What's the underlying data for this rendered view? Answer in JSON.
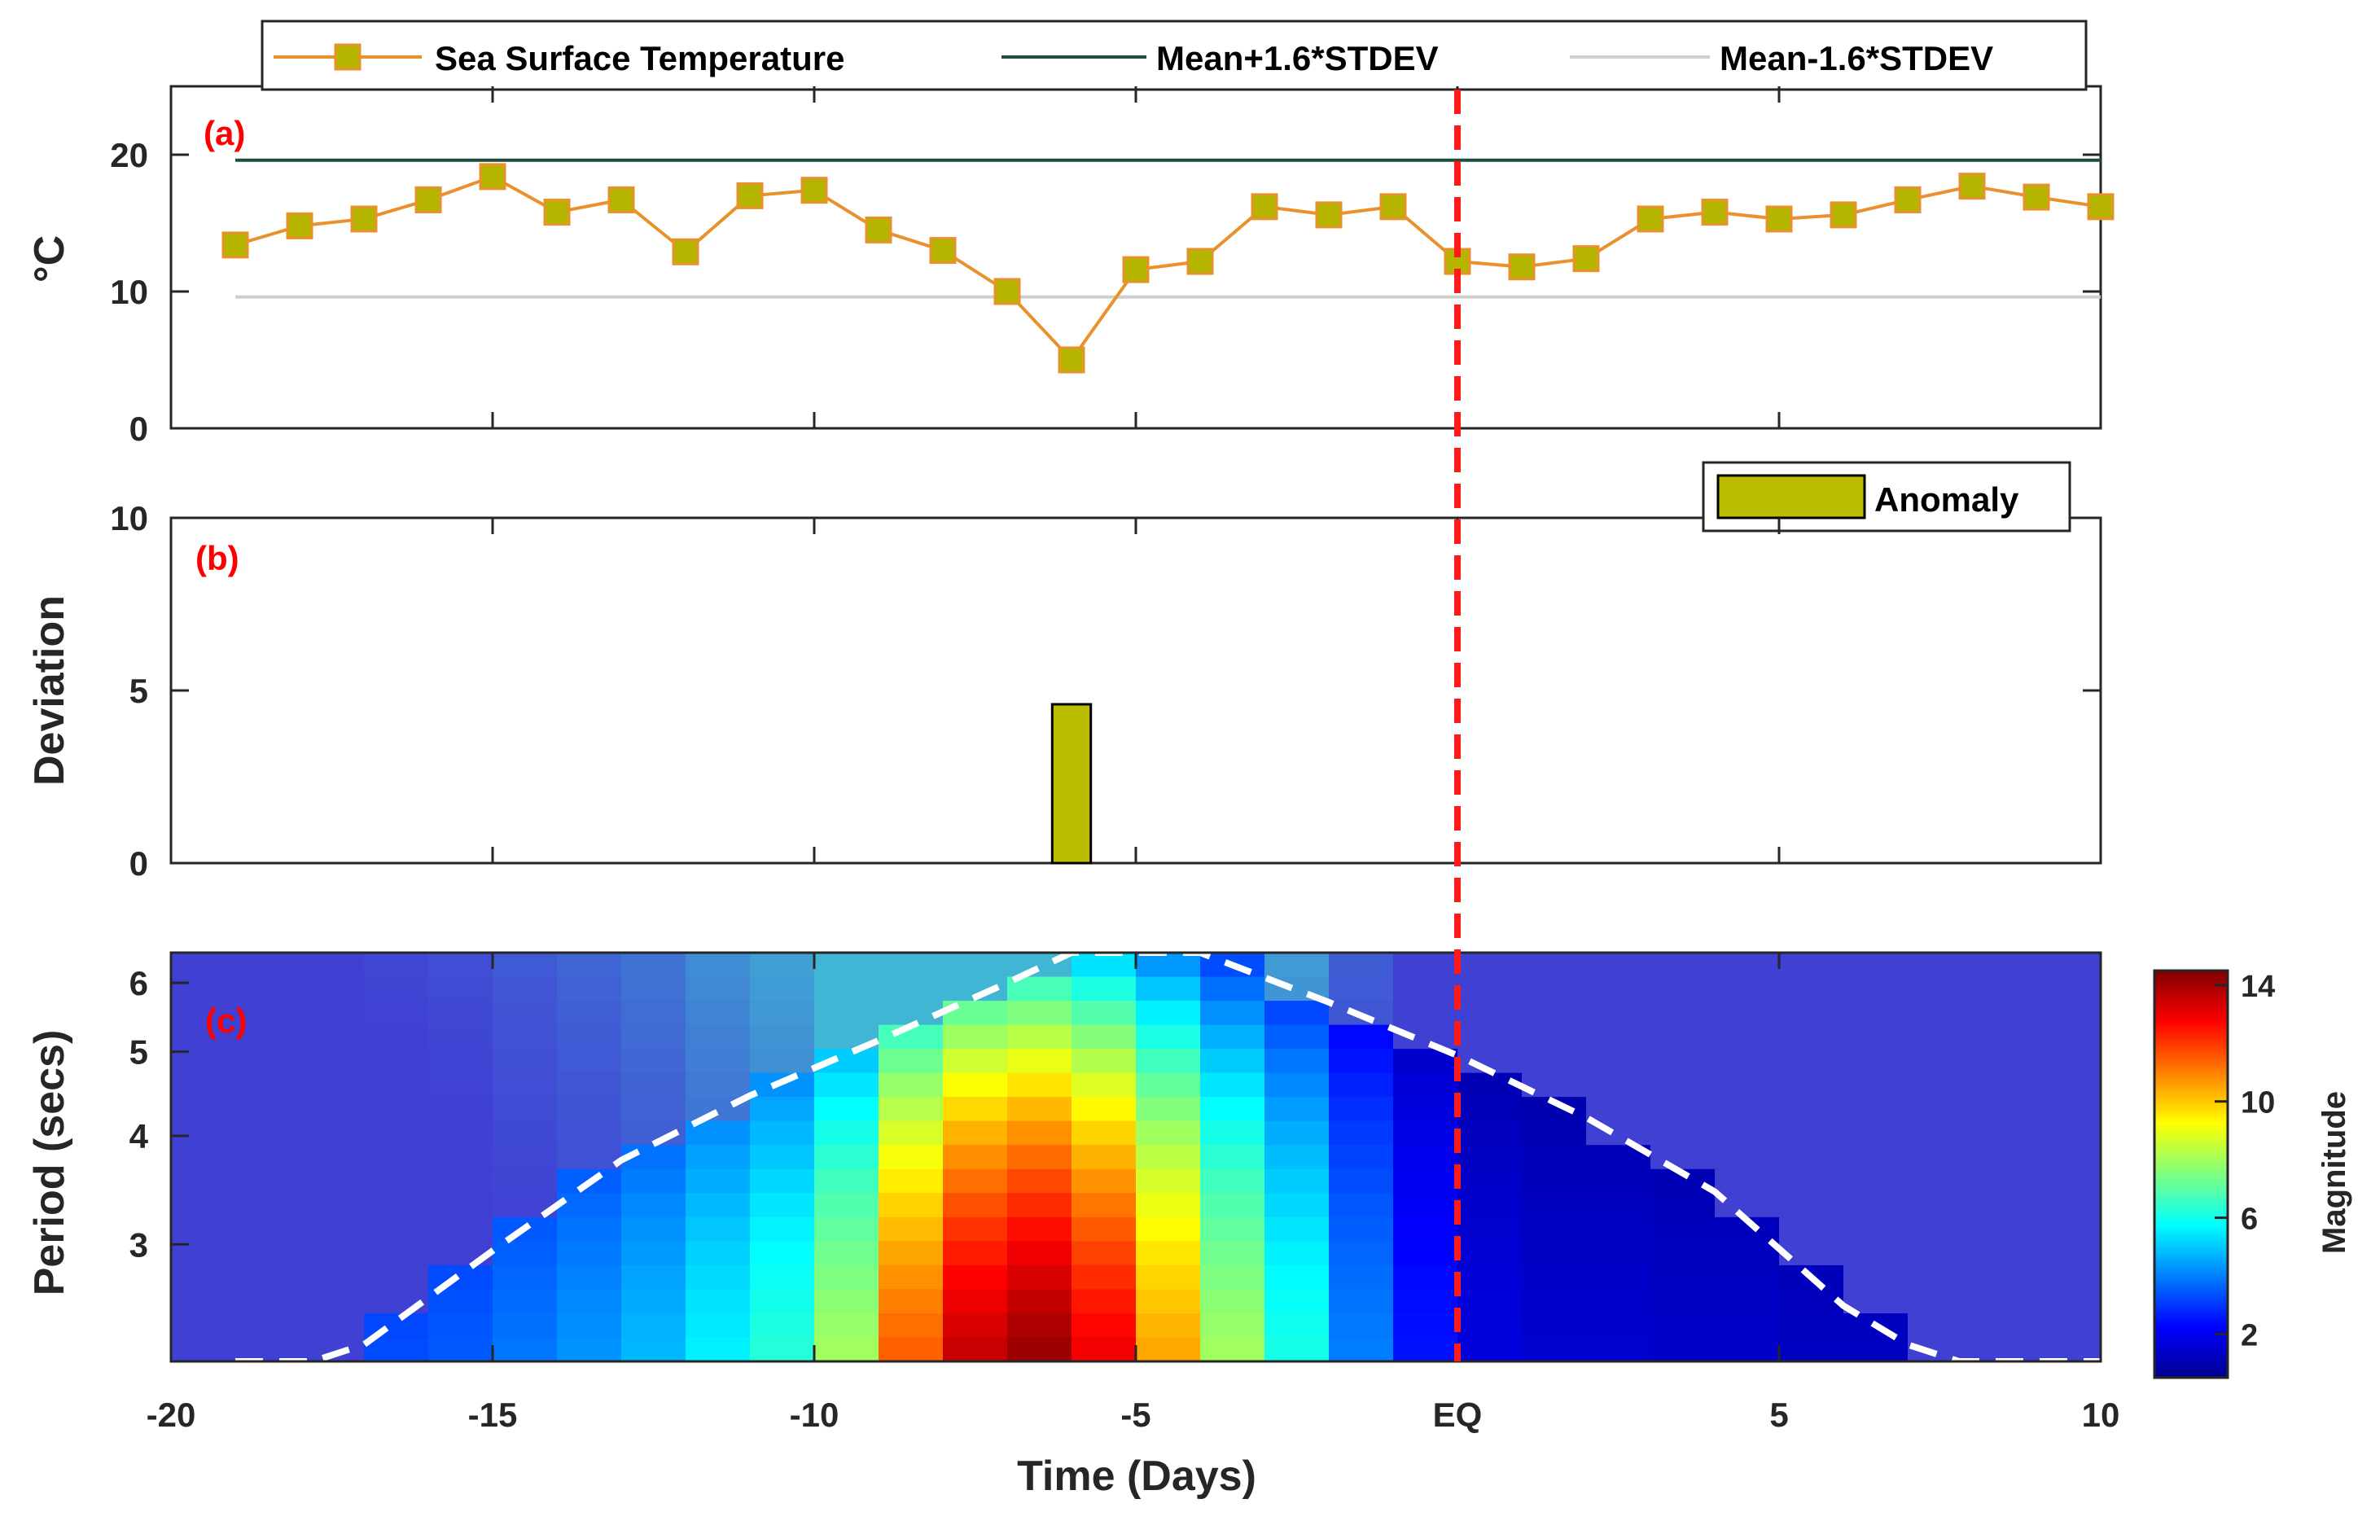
{
  "chart_data": [
    {
      "panel": "(a)",
      "type": "line",
      "ylabel": "°C",
      "ylim": [
        0,
        25
      ],
      "yticks": [
        "0",
        "10",
        "20"
      ],
      "x": [
        -19,
        -18,
        -17,
        -16,
        -15,
        -14,
        -13,
        -12,
        -11,
        -10,
        -9,
        -8,
        -7,
        -6,
        -5,
        -4,
        -3,
        -2,
        -1,
        0,
        1,
        2,
        3,
        4,
        5,
        6,
        7,
        8,
        9,
        10
      ],
      "series": [
        {
          "name": "Sea Surface Temperature",
          "color": "#e8912d",
          "marker": "#b5b500",
          "values": [
            13.4,
            14.8,
            15.3,
            16.7,
            18.4,
            15.8,
            16.7,
            12.9,
            17.0,
            17.4,
            14.5,
            13.0,
            10.0,
            5.0,
            11.6,
            12.2,
            16.2,
            15.6,
            16.2,
            12.2,
            11.8,
            12.4,
            15.3,
            15.8,
            15.3,
            15.6,
            16.7,
            17.7,
            16.9,
            16.2
          ]
        },
        {
          "name": "Mean+1.6*STDEV",
          "color": "#1f4f3a",
          "value": 19.6
        },
        {
          "name": "Mean-1.6*STDEV",
          "color": "#d0d0c8",
          "value": 9.6
        }
      ]
    },
    {
      "panel": "(b)",
      "type": "bar",
      "ylabel": "Deviation",
      "ylim": [
        0,
        10
      ],
      "yticks": [
        "0",
        "5",
        "10"
      ],
      "series": [
        {
          "name": "Anomaly",
          "color": "#bdbd00",
          "x": [
            -6
          ],
          "values": [
            4.6
          ]
        }
      ]
    },
    {
      "panel": "(c)",
      "type": "heatmap",
      "ylabel": "Period (secs)",
      "yticks": [
        "3",
        "4",
        "5",
        "6"
      ],
      "colorbar_label": "Magnitude",
      "colorbar_ticks": [
        "2",
        "6",
        "10",
        "14"
      ],
      "clim": [
        0.5,
        14.5
      ],
      "columns_x_start": -20,
      "column_width_days": 1,
      "column_peak_magnitude": [
        2.2,
        2.3,
        2.8,
        3.3,
        3.5,
        3.9,
        4.3,
        4.8,
        5.6,
        6.3,
        8.0,
        11.5,
        13.6,
        14.2,
        13.0,
        10.5,
        8.0,
        6.1,
        4.0,
        2.5,
        1.8,
        1.6,
        1.6,
        1.5,
        1.5,
        1.4,
        1.4,
        1.4,
        1.3,
        1.3
      ]
    }
  ],
  "x_axis": {
    "label": "Time (Days)",
    "range": [
      -20,
      10
    ],
    "ticks": [
      {
        "v": -20,
        "label": "-20"
      },
      {
        "v": -15,
        "label": "-15"
      },
      {
        "v": -10,
        "label": "-10"
      },
      {
        "v": -5,
        "label": "-5"
      },
      {
        "v": 0,
        "label": "EQ"
      },
      {
        "v": 5,
        "label": "5"
      },
      {
        "v": 10,
        "label": "10"
      }
    ]
  },
  "event_line_x": 0,
  "colors": {
    "event_line": "#ff1a1a",
    "cone": "#ffffff"
  }
}
